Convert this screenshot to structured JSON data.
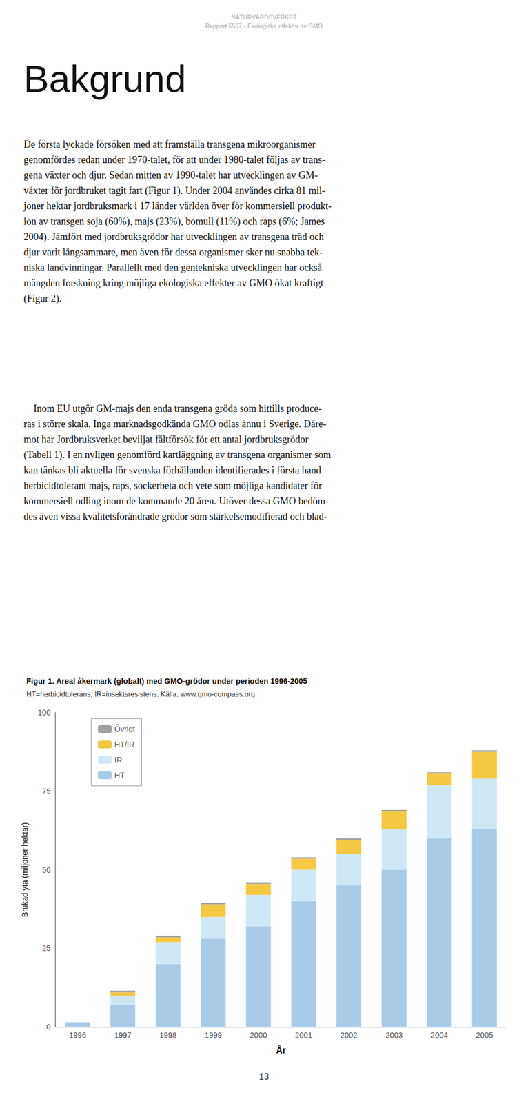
{
  "chart_data": {
    "type": "bar",
    "title": "Figur 1. Areal åkermark (globalt) med GMO-grödor under perioden 1996-2005",
    "subtitle": "HT=herbicidtolerans; IR=insektsresistens. Källa: www.gmo-compass.org",
    "annotations": [
      "NATURVÅRDSVERKET",
      "Rapport 5597 • Ekologiska effekter av GMO",
      "Bakgrund",
      "De första lyckade försöken med att framställa transgena mikroorganismer\ngenomfördes redan under 1970-talet, för att under 1980-talet följas av trans-\ngena växter och djur. Sedan mitten av 1990-talet har utvecklingen av GM-\nväxter för jordbruket tagit fart (Figur 1). Under 2004 användes cirka 81 mil-\njoner hektar jordbruksmark i 17 länder världen över för kommersiell produkt-\nion av transgen soja (60%), majs (23%), bomull (11%) och raps (6%; James\n2004). Jämfört med jordbruksgrödor har utvecklingen av transgena träd och\ndjur varit långsammare, men även för dessa organismer sker nu snabba tek-\nniska landvinningar. Parallellt med den gentekniska utvecklingen har också\nmängden forskning kring möjliga ekologiska effekter av GMO ökat kraftigt\n(Figur 2).",
      "    Inom EU utgör GM-majs den enda transgena gröda som hittills produce-\nras i större skala. Inga marknadsgodkända GMO odlas ännu i Sverige. Däre-\nmot har Jordbruksverket beviljat fältförsök för ett antal jordbruksgrödor\n(Tabell 1). I en nyligen genomförd kartläggning av transgena organismer som\nkan tänkas bli aktuella för svenska förhållanden identifierades i första hand\nherbicidtolerant majs, raps, sockerbeta och vete som möjliga kandidater för\nkommersiell odling inom de kommande 20 åren. Utöver dessa GMO bedöm-\ndes även vissa kvalitetsförändrade grödor som stärkelsemodifierad och blad-",
      "13"
    ],
    "categories": [
      "1996",
      "1997",
      "1998",
      "1999",
      "2000",
      "2001",
      "2002",
      "2003",
      "2004",
      "2005"
    ],
    "series": [
      {
        "name": "HT",
        "color": "#a8cce8",
        "values": [
          1.5,
          7.0,
          20.0,
          28.0,
          32.0,
          40.0,
          45.0,
          50.0,
          60.0,
          63.0
        ]
      },
      {
        "name": "IR",
        "color": "#d0e8f5",
        "values": [
          0.0,
          3.0,
          7.0,
          7.0,
          10.0,
          10.0,
          10.0,
          13.0,
          17.0,
          16.0
        ]
      },
      {
        "name": "HT/IR",
        "color": "#f5c842",
        "values": [
          0.0,
          1.0,
          1.5,
          4.0,
          3.5,
          3.5,
          4.5,
          5.5,
          3.5,
          8.5
        ]
      },
      {
        "name": "Övrigt",
        "color": "#a0a0a0",
        "values": [
          0.0,
          0.5,
          0.5,
          0.5,
          0.5,
          0.5,
          0.5,
          0.5,
          0.5,
          0.5
        ]
      }
    ],
    "xlabel": "År",
    "ylabel": "Brukad yta (miljoner hektar)",
    "ylim": [
      0,
      100
    ],
    "yticks": [
      0,
      25,
      50,
      75,
      100
    ],
    "stacked": true,
    "grid": false,
    "legend": "upper left"
  }
}
